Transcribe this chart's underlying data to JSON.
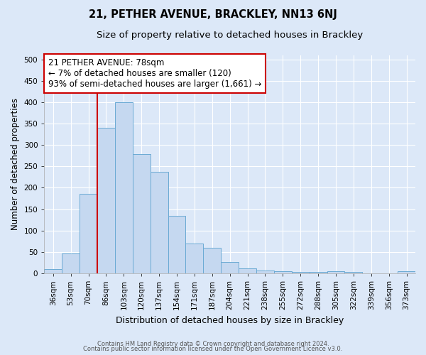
{
  "title": "21, PETHER AVENUE, BRACKLEY, NN13 6NJ",
  "subtitle": "Size of property relative to detached houses in Brackley",
  "xlabel": "Distribution of detached houses by size in Brackley",
  "ylabel": "Number of detached properties",
  "categories": [
    "36sqm",
    "53sqm",
    "70sqm",
    "86sqm",
    "103sqm",
    "120sqm",
    "137sqm",
    "154sqm",
    "171sqm",
    "187sqm",
    "204sqm",
    "221sqm",
    "238sqm",
    "255sqm",
    "272sqm",
    "288sqm",
    "305sqm",
    "322sqm",
    "339sqm",
    "356sqm",
    "373sqm"
  ],
  "values": [
    10,
    46,
    185,
    340,
    400,
    278,
    238,
    135,
    70,
    60,
    26,
    12,
    7,
    5,
    3,
    3,
    5,
    3,
    0,
    0,
    5
  ],
  "bar_color": "#c5d8f0",
  "bar_edgecolor": "#6aaad4",
  "background_color": "#dce8f8",
  "grid_color": "#ffffff",
  "vline_x": 2.5,
  "vline_color": "#cc0000",
  "annotation_line1": "21 PETHER AVENUE: 78sqm",
  "annotation_line2": "← 7% of detached houses are smaller (120)",
  "annotation_line3": "93% of semi-detached houses are larger (1,661) →",
  "annotation_box_color": "#ffffff",
  "annotation_box_edgecolor": "#cc0000",
  "ylim": [
    0,
    510
  ],
  "yticks": [
    0,
    50,
    100,
    150,
    200,
    250,
    300,
    350,
    400,
    450,
    500
  ],
  "footnote1": "Contains HM Land Registry data © Crown copyright and database right 2024.",
  "footnote2": "Contains public sector information licensed under the Open Government Licence v3.0.",
  "title_fontsize": 10.5,
  "subtitle_fontsize": 9.5,
  "tick_fontsize": 7.5,
  "ylabel_fontsize": 8.5,
  "xlabel_fontsize": 9,
  "annotation_fontsize": 8.5,
  "footnote_fontsize": 6.0
}
